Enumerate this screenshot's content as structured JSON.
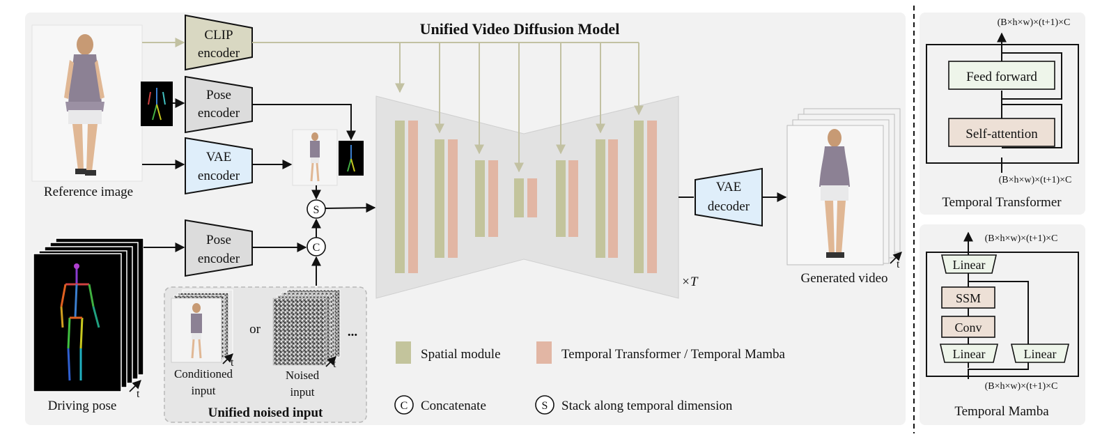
{
  "main": {
    "title": "Unified Video Diffusion Model",
    "encoders": {
      "clip": [
        "CLIP",
        "encoder"
      ],
      "pose_top": [
        "Pose",
        "encoder"
      ],
      "vae_enc": [
        "VAE",
        "encoder"
      ],
      "pose_bottom": [
        "Pose",
        "encoder"
      ],
      "vae_dec": [
        "VAE",
        "decoder"
      ]
    },
    "labels": {
      "reference_image": "Reference image",
      "driving_pose": "Driving pose",
      "generated_video": "Generated video",
      "repeat": "×T",
      "t": "t",
      "or": "or",
      "ellipsis": "...",
      "conditioned_input": [
        "Conditioned",
        "input"
      ],
      "noised_input": [
        "Noised",
        "input"
      ],
      "unified_noised_input": "Unified noised input"
    },
    "ops": {
      "stack": "S",
      "concat": "C"
    },
    "legend": {
      "spatial": "Spatial module",
      "temporal": "Temporal Transformer / Temporal Mamba",
      "concatenate": "Concatenate",
      "stack": "Stack along temporal dimension"
    }
  },
  "temporal_transformer": {
    "title": "Temporal Transformer",
    "shape_out": "(B×h×w)×(t+1)×C",
    "shape_in": "(B×h×w)×(t+1)×C",
    "feed_forward": "Feed forward",
    "self_attention": "Self-attention"
  },
  "temporal_mamba": {
    "title": "Temporal Mamba",
    "shape_out": "(B×h×w)×(t+1)×C",
    "shape_in": "(B×h×w)×(t+1)×C",
    "linear_top": "Linear",
    "ssm": "SSM",
    "conv": "Conv",
    "linear_left": "Linear",
    "linear_right": "Linear"
  },
  "colors": {
    "panel_bg": "#f2f2f2",
    "clip_fill": "#d9d8c2",
    "pose_fill": "#dcdcdc",
    "vae_fill": "#dfeefa",
    "spatial": "#c3c49c",
    "temporal": "#e2b6a4",
    "clip_arrow": "#c2c1a2",
    "ff_fill": "#eef5ea",
    "sa_fill": "#ede0d6",
    "mamba_op_fill": "#ede0d6",
    "linear_fill": "#eef5ea"
  }
}
